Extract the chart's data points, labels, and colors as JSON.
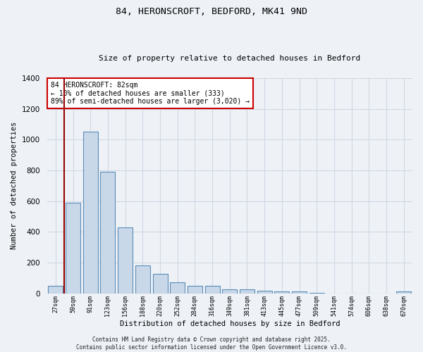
{
  "title_line1": "84, HERONSCROFT, BEDFORD, MK41 9ND",
  "title_line2": "Size of property relative to detached houses in Bedford",
  "xlabel": "Distribution of detached houses by size in Bedford",
  "ylabel": "Number of detached properties",
  "bar_color": "#c8d8e8",
  "bar_edge_color": "#5b8db8",
  "background_color": "#eef2f7",
  "grid_color": "#d0d8e4",
  "categories": [
    "27sqm",
    "59sqm",
    "91sqm",
    "123sqm",
    "156sqm",
    "188sqm",
    "220sqm",
    "252sqm",
    "284sqm",
    "316sqm",
    "349sqm",
    "381sqm",
    "413sqm",
    "445sqm",
    "477sqm",
    "509sqm",
    "541sqm",
    "574sqm",
    "606sqm",
    "638sqm",
    "670sqm"
  ],
  "values": [
    50,
    590,
    1050,
    790,
    430,
    180,
    125,
    70,
    50,
    50,
    25,
    25,
    18,
    10,
    10,
    5,
    0,
    0,
    0,
    0,
    10
  ],
  "ylim": [
    0,
    1400
  ],
  "yticks": [
    0,
    200,
    400,
    600,
    800,
    1000,
    1200,
    1400
  ],
  "annotation_text": "84 HERONSCROFT: 82sqm\n← 10% of detached houses are smaller (333)\n89% of semi-detached houses are larger (3,020) →",
  "vline_color": "#990000",
  "annotation_box_color": "#ffffff",
  "annotation_box_edge": "#cc0000",
  "footer_line1": "Contains HM Land Registry data © Crown copyright and database right 2025.",
  "footer_line2": "Contains public sector information licensed under the Open Government Licence v3.0."
}
